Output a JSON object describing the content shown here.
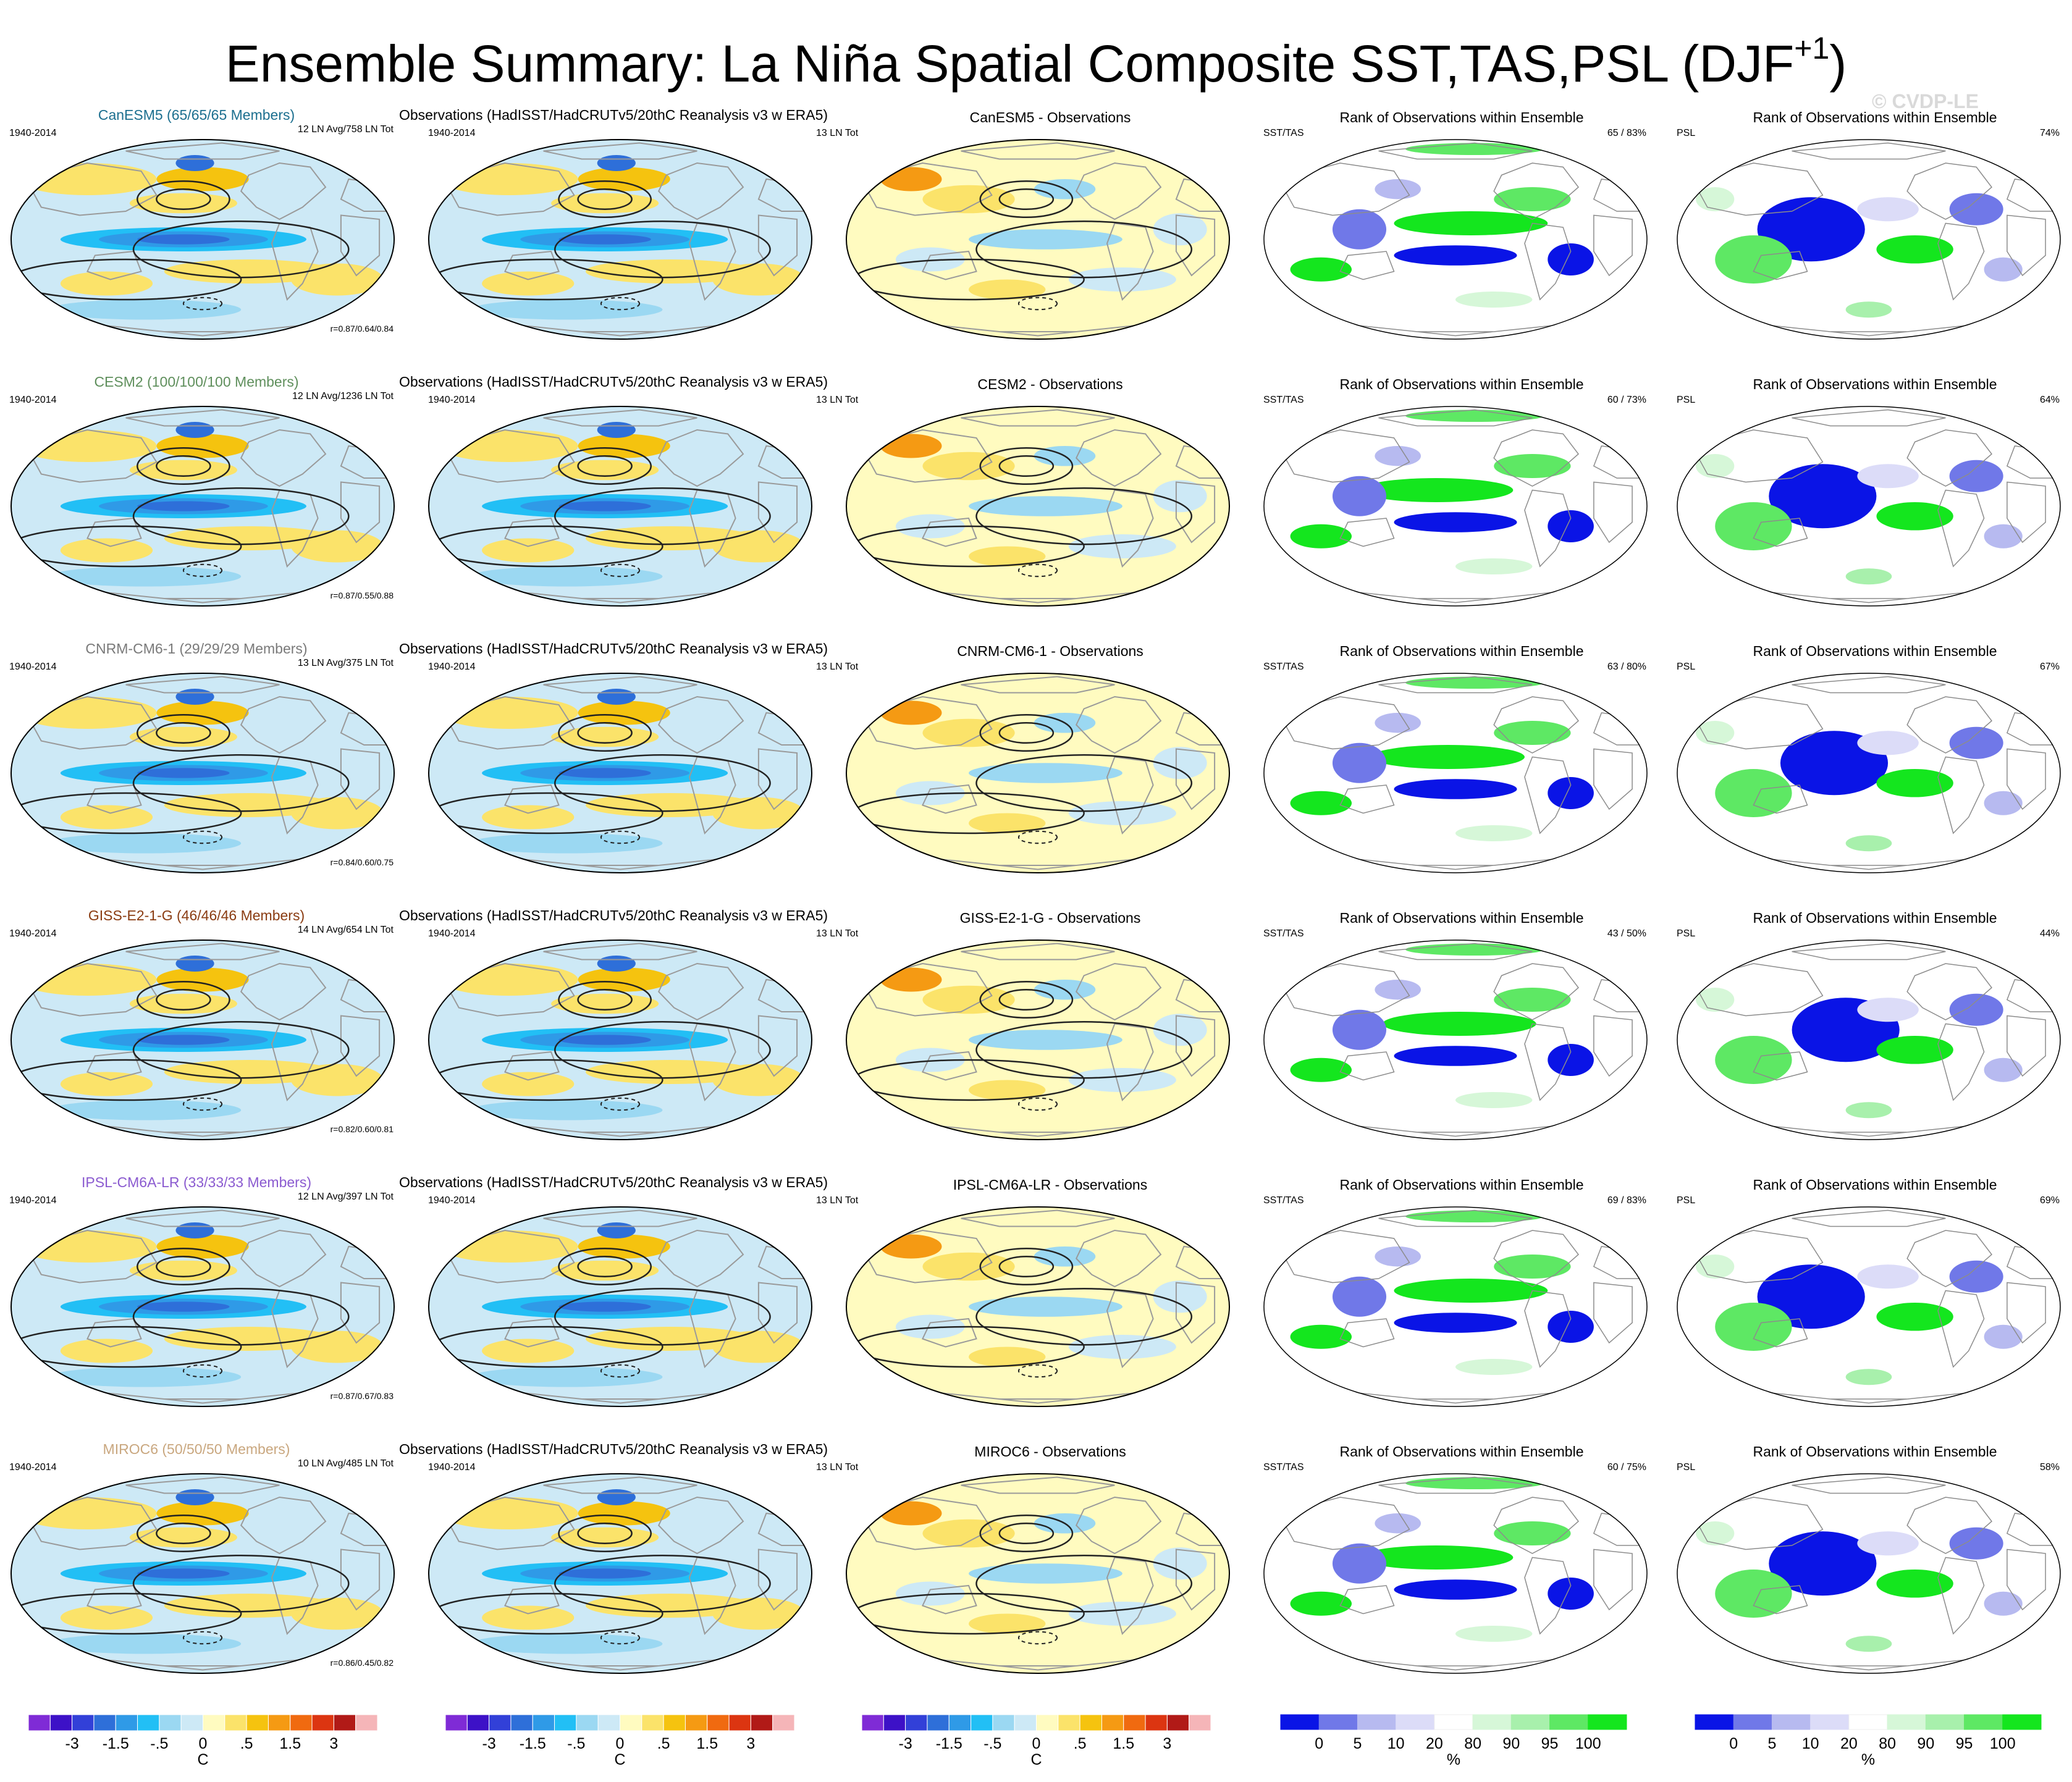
{
  "title": {
    "main": "Ensemble Summary: La Niña Spatial Composite SST,TAS,PSL (DJF",
    "sup": "+1",
    "close": ")"
  },
  "watermark": "© CVDP-LE",
  "colors": {
    "temp_levels": [
      "#7f2bd6",
      "#3d11c7",
      "#3240d8",
      "#2e6fd9",
      "#2f9ae7",
      "#22bff5",
      "#9bd8f2",
      "#cde9f6",
      "#fffbc0",
      "#fbe36a",
      "#f5c30f",
      "#f59a13",
      "#f06a10",
      "#dc3511",
      "#b11a17",
      "#f5b5b8"
    ],
    "rank_levels": [
      "#0a14e6",
      "#7078e8",
      "#b7baf0",
      "#dcdcf8",
      "#ffffff",
      "#d6f7d8",
      "#a8f0ac",
      "#5ee864",
      "#14e61e"
    ],
    "land_outline": "#9a9a9a",
    "contour": "#222222"
  },
  "panels": {
    "observations_title": "Observations (HadISST/HadCRUTv5/20thC Reanalysis v3 w ERA5)",
    "rank_title": "Rank of Observations within Ensemble",
    "period": "1940-2014",
    "obs_count": "13 LN Tot",
    "sst_tas_label": "SST/TAS",
    "psl_label": "PSL"
  },
  "rows": [
    {
      "model": "CanESM5",
      "members": "CanESM5 (65/65/65 Members)",
      "model_color": "#1c6f8f",
      "ln_stats": "12 LN Avg/758 LN Tot",
      "corr": "r=0.87/0.64/0.84",
      "diff_title": "CanESM5 - Observations",
      "rank_sst": "65 /  83%",
      "rank_psl": "74%"
    },
    {
      "model": "CESM2",
      "members": "CESM2 (100/100/100 Members)",
      "model_color": "#5f8f5c",
      "ln_stats": "12 LN Avg/1236 LN Tot",
      "corr": "r=0.87/0.55/0.88",
      "diff_title": "CESM2 - Observations",
      "rank_sst": "60 /  73%",
      "rank_psl": "64%"
    },
    {
      "model": "CNRM-CM6-1",
      "members": "CNRM-CM6-1 (29/29/29 Members)",
      "model_color": "#7a7a7a",
      "ln_stats": "13 LN Avg/375 LN Tot",
      "corr": "r=0.84/0.60/0.75",
      "diff_title": "CNRM-CM6-1 - Observations",
      "rank_sst": "63 /  80%",
      "rank_psl": "67%"
    },
    {
      "model": "GISS-E2-1-G",
      "members": "GISS-E2-1-G (46/46/46 Members)",
      "model_color": "#8a3c12",
      "ln_stats": "14 LN Avg/654 LN Tot",
      "corr": "r=0.82/0.60/0.81",
      "diff_title": "GISS-E2-1-G - Observations",
      "rank_sst": "43 /  50%",
      "rank_psl": "44%"
    },
    {
      "model": "IPSL-CM6A-LR",
      "members": "IPSL-CM6A-LR (33/33/33 Members)",
      "model_color": "#8b5bd0",
      "ln_stats": "12 LN Avg/397 LN Tot",
      "corr": "r=0.87/0.67/0.83",
      "diff_title": "IPSL-CM6A-LR - Observations",
      "rank_sst": "69 /  83%",
      "rank_psl": "69%"
    },
    {
      "model": "MIROC6",
      "members": "MIROC6 (50/50/50 Members)",
      "model_color": "#c9a77f",
      "ln_stats": "10 LN Avg/485 LN Tot",
      "corr": "r=0.86/0.45/0.82",
      "diff_title": "MIROC6 - Observations",
      "rank_sst": "60 /  75%",
      "rank_psl": "58%"
    }
  ],
  "colorbars": {
    "temp": {
      "ticks": [
        "-3",
        "-1.5",
        "-.5",
        "0",
        ".5",
        "1.5",
        "3"
      ],
      "unit": "C"
    },
    "rank": {
      "ticks": [
        "0",
        "5",
        "10",
        "20",
        "80",
        "90",
        "95",
        "100"
      ],
      "unit": "%"
    }
  },
  "chart_data": {
    "type": "heatmap",
    "title": "Ensemble Summary: La Niña Spatial Composite SST,TAS,PSL (DJF+1)",
    "layout": "6 model rows x 5 map columns (model composite, observations, model minus observations, SST/TAS rank, PSL rank)",
    "models": [
      "CanESM5",
      "CESM2",
      "CNRM-CM6-1",
      "GISS-E2-1-G",
      "IPSL-CM6A-LR",
      "MIROC6"
    ],
    "ensemble_members": [
      65,
      100,
      29,
      46,
      33,
      50
    ],
    "la_nina_events_avg": [
      12,
      12,
      13,
      14,
      12,
      10
    ],
    "la_nina_events_total": [
      758,
      1236,
      375,
      654,
      397,
      485
    ],
    "pattern_correlation_sst_tas_psl": [
      [
        0.87,
        0.64,
        0.84
      ],
      [
        0.87,
        0.55,
        0.88
      ],
      [
        0.84,
        0.6,
        0.75
      ],
      [
        0.82,
        0.6,
        0.81
      ],
      [
        0.87,
        0.67,
        0.83
      ],
      [
        0.86,
        0.45,
        0.82
      ]
    ],
    "rank_sst_tas_percent_pair": [
      [
        65,
        83
      ],
      [
        60,
        73
      ],
      [
        63,
        80
      ],
      [
        43,
        50
      ],
      [
        69,
        83
      ],
      [
        60,
        75
      ]
    ],
    "rank_psl_percent": [
      74,
      64,
      67,
      44,
      69,
      58
    ],
    "observations_la_nina_total": 13,
    "period": "1940-2014",
    "temperature_colorbar_ticks": [
      -3,
      -1.5,
      -0.5,
      0,
      0.5,
      1.5,
      3
    ],
    "temperature_unit": "C",
    "rank_colorbar_ticks": [
      0,
      5,
      10,
      20,
      80,
      90,
      95,
      100
    ],
    "rank_unit": "%"
  }
}
